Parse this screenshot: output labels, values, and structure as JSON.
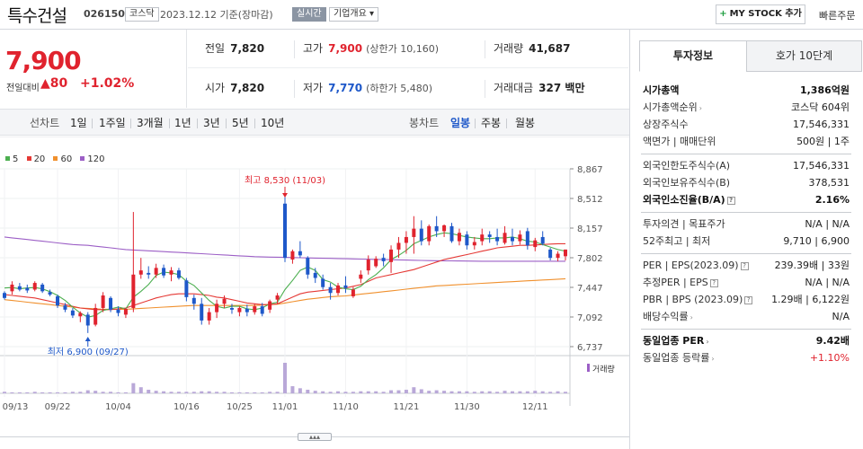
{
  "header": {
    "stock_name": "특수건설",
    "stock_code": "026150",
    "market": "코스닥",
    "date_text": "2023.12.12 기준(장마감)",
    "realtime": "실시간",
    "company_info": "기업개요 ▾",
    "mystock_label": "MY STOCK 추가",
    "mystock_plus": "+",
    "quick_order": "빠른주문"
  },
  "price": {
    "current": "7,900",
    "diff_label": "전일대비",
    "diff_value": "▲80",
    "diff_pct": "+1.02%"
  },
  "summary": {
    "prev_label": "전일",
    "prev_value": "7,820",
    "high_label": "고가",
    "high_value": "7,900",
    "high_sub": "(상한가 10,160)",
    "volume_label": "거래량",
    "volume_value": "41,687",
    "open_label": "시가",
    "open_value": "7,820",
    "low_label": "저가",
    "low_value": "7,770",
    "low_sub": "(하한가 5,480)",
    "amount_label": "거래대금",
    "amount_value": "327 백만"
  },
  "toolbar": {
    "line_label": "선차트",
    "periods": [
      "1일",
      "1주일",
      "3개월",
      "1년",
      "3년",
      "5년",
      "10년"
    ],
    "candle_label": "봉차트",
    "candle_types": [
      "일봉",
      "주봉",
      "월봉"
    ],
    "active_candle": "일봉"
  },
  "legend": [
    {
      "name": "5",
      "color": "#4caf50"
    },
    {
      "name": "20",
      "color": "#e53935"
    },
    {
      "name": "60",
      "color": "#f0902d"
    },
    {
      "name": "120",
      "color": "#9c5fc6"
    }
  ],
  "chart_data": {
    "type": "candlestick",
    "y_ticks": [
      "8,867",
      "8,512",
      "8,157",
      "7,802",
      "7,447",
      "7,092",
      "6,737"
    ],
    "ylim": [
      6737,
      8867
    ],
    "x_labels": [
      "09/13",
      "09/22",
      "10/04",
      "10/16",
      "10/25",
      "11/01",
      "11/10",
      "11/21",
      "11/30",
      "12/11"
    ],
    "max_annotation": "최고 8,530 (11/03)",
    "min_annotation": "최저 6,900 (09/27)",
    "volume_label": "거래량",
    "up_color": "#e0232e",
    "down_color": "#1e58c9",
    "candles": [
      {
        "o": 7380,
        "h": 7400,
        "l": 7300,
        "c": 7320
      },
      {
        "o": 7400,
        "h": 7520,
        "l": 7360,
        "c": 7480
      },
      {
        "o": 7460,
        "h": 7500,
        "l": 7400,
        "c": 7420
      },
      {
        "o": 7440,
        "h": 7480,
        "l": 7380,
        "c": 7410
      },
      {
        "o": 7420,
        "h": 7520,
        "l": 7400,
        "c": 7500
      },
      {
        "o": 7480,
        "h": 7500,
        "l": 7380,
        "c": 7400
      },
      {
        "o": 7390,
        "h": 7420,
        "l": 7340,
        "c": 7360
      },
      {
        "o": 7340,
        "h": 7360,
        "l": 7200,
        "c": 7230
      },
      {
        "o": 7230,
        "h": 7260,
        "l": 7150,
        "c": 7180
      },
      {
        "o": 7170,
        "h": 7200,
        "l": 7080,
        "c": 7110
      },
      {
        "o": 7100,
        "h": 7160,
        "l": 7030,
        "c": 7140
      },
      {
        "o": 7120,
        "h": 7150,
        "l": 6900,
        "c": 6990
      },
      {
        "o": 7000,
        "h": 7250,
        "l": 6980,
        "c": 7200
      },
      {
        "o": 7200,
        "h": 7390,
        "l": 7150,
        "c": 7350
      },
      {
        "o": 7320,
        "h": 7340,
        "l": 7150,
        "c": 7180
      },
      {
        "o": 7180,
        "h": 7220,
        "l": 7100,
        "c": 7140
      },
      {
        "o": 7120,
        "h": 7200,
        "l": 7080,
        "c": 7190
      },
      {
        "o": 7200,
        "h": 8350,
        "l": 7150,
        "c": 7600
      },
      {
        "o": 7600,
        "h": 7800,
        "l": 7550,
        "c": 7650
      },
      {
        "o": 7620,
        "h": 7700,
        "l": 7550,
        "c": 7600
      },
      {
        "o": 7600,
        "h": 7730,
        "l": 7560,
        "c": 7680
      },
      {
        "o": 7680,
        "h": 7720,
        "l": 7560,
        "c": 7590
      },
      {
        "o": 7600,
        "h": 7690,
        "l": 7520,
        "c": 7650
      },
      {
        "o": 7650,
        "h": 7680,
        "l": 7540,
        "c": 7560
      },
      {
        "o": 7530,
        "h": 7560,
        "l": 7280,
        "c": 7330
      },
      {
        "o": 7320,
        "h": 7360,
        "l": 7180,
        "c": 7250
      },
      {
        "o": 7250,
        "h": 7320,
        "l": 7000,
        "c": 7050
      },
      {
        "o": 7050,
        "h": 7200,
        "l": 7000,
        "c": 7150
      },
      {
        "o": 7150,
        "h": 7300,
        "l": 7080,
        "c": 7250
      },
      {
        "o": 7250,
        "h": 7350,
        "l": 7200,
        "c": 7310
      },
      {
        "o": 7200,
        "h": 7250,
        "l": 7130,
        "c": 7180
      },
      {
        "o": 7150,
        "h": 7220,
        "l": 7100,
        "c": 7200
      },
      {
        "o": 7190,
        "h": 7240,
        "l": 7100,
        "c": 7150
      },
      {
        "o": 7150,
        "h": 7250,
        "l": 7120,
        "c": 7220
      },
      {
        "o": 7220,
        "h": 7260,
        "l": 7100,
        "c": 7130
      },
      {
        "o": 7180,
        "h": 7300,
        "l": 7140,
        "c": 7280
      },
      {
        "o": 7300,
        "h": 7380,
        "l": 7250,
        "c": 7350
      },
      {
        "o": 8450,
        "h": 8530,
        "l": 7750,
        "c": 7800
      },
      {
        "o": 7780,
        "h": 7900,
        "l": 7730,
        "c": 7880
      },
      {
        "o": 7880,
        "h": 8000,
        "l": 7800,
        "c": 7830
      },
      {
        "o": 7800,
        "h": 7820,
        "l": 7550,
        "c": 7600
      },
      {
        "o": 7620,
        "h": 7680,
        "l": 7500,
        "c": 7560
      },
      {
        "o": 7550,
        "h": 7600,
        "l": 7420,
        "c": 7450
      },
      {
        "o": 7450,
        "h": 7500,
        "l": 7300,
        "c": 7380
      },
      {
        "o": 7380,
        "h": 7500,
        "l": 7350,
        "c": 7470
      },
      {
        "o": 7470,
        "h": 7580,
        "l": 7380,
        "c": 7440
      },
      {
        "o": 7340,
        "h": 7450,
        "l": 7320,
        "c": 7420
      },
      {
        "o": 7550,
        "h": 7650,
        "l": 7500,
        "c": 7600
      },
      {
        "o": 7650,
        "h": 7830,
        "l": 7600,
        "c": 7780
      },
      {
        "o": 7700,
        "h": 7820,
        "l": 7680,
        "c": 7790
      },
      {
        "o": 7800,
        "h": 7850,
        "l": 7700,
        "c": 7760
      },
      {
        "o": 7750,
        "h": 7950,
        "l": 7620,
        "c": 7900
      },
      {
        "o": 7900,
        "h": 8050,
        "l": 7800,
        "c": 7980
      },
      {
        "o": 7980,
        "h": 8120,
        "l": 7850,
        "c": 8050
      },
      {
        "o": 8050,
        "h": 8300,
        "l": 7850,
        "c": 8150
      },
      {
        "o": 8150,
        "h": 8250,
        "l": 7950,
        "c": 8000
      },
      {
        "o": 8000,
        "h": 8200,
        "l": 7950,
        "c": 8180
      },
      {
        "o": 8180,
        "h": 8300,
        "l": 8050,
        "c": 8120
      },
      {
        "o": 8120,
        "h": 8200,
        "l": 8050,
        "c": 8190
      },
      {
        "o": 8180,
        "h": 8220,
        "l": 7980,
        "c": 8000
      },
      {
        "o": 8000,
        "h": 8150,
        "l": 7950,
        "c": 8100
      },
      {
        "o": 8080,
        "h": 8120,
        "l": 7900,
        "c": 7950
      },
      {
        "o": 7950,
        "h": 8050,
        "l": 7900,
        "c": 7990
      },
      {
        "o": 8000,
        "h": 8150,
        "l": 7950,
        "c": 8080
      },
      {
        "o": 8080,
        "h": 8120,
        "l": 7980,
        "c": 8050
      },
      {
        "o": 8050,
        "h": 8150,
        "l": 7950,
        "c": 8000
      },
      {
        "o": 7980,
        "h": 8180,
        "l": 7960,
        "c": 8100
      },
      {
        "o": 8050,
        "h": 8150,
        "l": 7950,
        "c": 8000
      },
      {
        "o": 8000,
        "h": 8130,
        "l": 7960,
        "c": 8080
      },
      {
        "o": 8120,
        "h": 8160,
        "l": 7900,
        "c": 7950
      },
      {
        "o": 7930,
        "h": 8040,
        "l": 7880,
        "c": 8010
      },
      {
        "o": 8050,
        "h": 8120,
        "l": 7950,
        "c": 7970
      },
      {
        "o": 7900,
        "h": 7920,
        "l": 7770,
        "c": 7800
      },
      {
        "o": 7800,
        "h": 7880,
        "l": 7760,
        "c": 7850
      },
      {
        "o": 7820,
        "h": 7900,
        "l": 7770,
        "c": 7900
      }
    ],
    "ma5": [
      7440,
      7445,
      7430,
      7440,
      7445,
      7430,
      7395,
      7350,
      7290,
      7210,
      7140,
      7090,
      7110,
      7170,
      7190,
      7210,
      7190,
      7330,
      7400,
      7480,
      7590,
      7630,
      7620,
      7600,
      7520,
      7470,
      7380,
      7290,
      7220,
      7200,
      7220,
      7220,
      7190,
      7180,
      7200,
      7250,
      7270,
      7420,
      7530,
      7650,
      7690,
      7650,
      7540,
      7510,
      7450,
      7430,
      7420,
      7460,
      7540,
      7600,
      7680,
      7780,
      7830,
      7890,
      7970,
      8010,
      8050,
      8080,
      8100,
      8090,
      8070,
      8050,
      8040,
      8030,
      8030,
      8040,
      8040,
      8050,
      8030,
      8000,
      7990,
      7960,
      7930,
      7900,
      7880
    ],
    "ma20": [
      7360,
      7350,
      7340,
      7330,
      7320,
      7300,
      7280,
      7260,
      7240,
      7220,
      7200,
      7190,
      7180,
      7180,
      7180,
      7190,
      7200,
      7230,
      7260,
      7290,
      7320,
      7340,
      7360,
      7370,
      7370,
      7370,
      7360,
      7350,
      7330,
      7320,
      7300,
      7280,
      7260,
      7250,
      7240,
      7240,
      7250,
      7290,
      7330,
      7370,
      7390,
      7400,
      7410,
      7420,
      7430,
      7440,
      7460,
      7480,
      7520,
      7560,
      7580,
      7600,
      7620,
      7640,
      7660,
      7690,
      7720,
      7750,
      7780,
      7800,
      7820,
      7840,
      7860,
      7880,
      7900,
      7920,
      7930,
      7940,
      7950,
      7950,
      7955,
      7960,
      7965,
      7970,
      7970
    ],
    "ma60": [
      7300,
      7290,
      7280,
      7270,
      7260,
      7250,
      7240,
      7230,
      7220,
      7210,
      7200,
      7195,
      7190,
      7185,
      7185,
      7185,
      7185,
      7190,
      7195,
      7200,
      7205,
      7210,
      7215,
      7220,
      7225,
      7230,
      7230,
      7230,
      7230,
      7230,
      7230,
      7230,
      7230,
      7230,
      7235,
      7240,
      7245,
      7260,
      7275,
      7290,
      7305,
      7315,
      7325,
      7335,
      7340,
      7345,
      7355,
      7365,
      7375,
      7385,
      7395,
      7405,
      7415,
      7425,
      7435,
      7445,
      7455,
      7465,
      7470,
      7475,
      7480,
      7485,
      7490,
      7495,
      7500,
      7505,
      7510,
      7515,
      7520,
      7525,
      7530,
      7535,
      7540,
      7545,
      7550
    ],
    "ma120": [
      8050,
      8040,
      8030,
      8020,
      8010,
      8000,
      7990,
      7980,
      7970,
      7960,
      7955,
      7950,
      7940,
      7930,
      7920,
      7910,
      7900,
      7895,
      7890,
      7885,
      7880,
      7875,
      7870,
      7865,
      7860,
      7855,
      7850,
      7845,
      7840,
      7835,
      7830,
      7825,
      7820,
      7815,
      7812,
      7810,
      7808,
      7806,
      7804,
      7802,
      7800,
      7798,
      7796,
      7794,
      7792,
      7790,
      7788,
      7786,
      7784,
      7782,
      7780,
      7778,
      7776,
      7774,
      7772,
      7770,
      7768,
      7766,
      7765,
      7764,
      7763,
      7762,
      7761,
      7760,
      7760,
      7760,
      7760,
      7760,
      7760,
      7760,
      7760,
      7760,
      7760,
      7760,
      7760
    ],
    "volume": [
      3,
      2,
      2,
      2,
      3,
      2,
      2,
      2,
      2,
      3,
      3,
      6,
      5,
      3,
      3,
      2,
      2,
      20,
      12,
      7,
      5,
      4,
      3,
      3,
      3,
      3,
      4,
      4,
      3,
      3,
      2,
      2,
      2,
      2,
      2,
      3,
      3,
      60,
      14,
      10,
      7,
      5,
      4,
      3,
      4,
      3,
      3,
      4,
      4,
      4,
      3,
      6,
      6,
      7,
      12,
      8,
      5,
      6,
      5,
      4,
      4,
      4,
      3,
      4,
      4,
      3,
      5,
      4,
      4,
      4,
      5,
      4,
      3,
      4,
      3
    ]
  },
  "right_panel": {
    "tab_invest": "투자정보",
    "tab_hoga": "호가 10단계",
    "groups": [
      [
        {
          "k": "시가총액",
          "v": "1,386억원",
          "bold": true
        },
        {
          "k": "시가총액순위",
          "v": "코스닥 604위",
          "arrow": true
        },
        {
          "k": "상장주식수",
          "v": "17,546,331"
        },
        {
          "k": "액면가 | 매매단위",
          "v": "500원 | 1주"
        }
      ],
      [
        {
          "k": "외국인한도주식수(A)",
          "v": "17,546,331"
        },
        {
          "k": "외국인보유주식수(B)",
          "v": "378,531"
        },
        {
          "k": "외국인소진율(B/A)",
          "v": "2.16%",
          "bold": true,
          "q": true
        }
      ],
      [
        {
          "k": "투자의견 | 목표주가",
          "v": "N/A | N/A"
        },
        {
          "k": "52주최고 | 최저",
          "v": "9,710 | 6,900"
        }
      ],
      [
        {
          "k": "PER | EPS(2023.09)",
          "v": "239.39배 | 33원",
          "q": true
        },
        {
          "k": "추정PER | EPS",
          "v": "N/A | N/A",
          "q": true
        },
        {
          "k": "PBR | BPS (2023.09)",
          "v": "1.29배 | 6,122원",
          "q": true
        },
        {
          "k": "배당수익률",
          "v": "N/A",
          "arrow": true
        }
      ],
      [
        {
          "k": "동일업종 PER",
          "v": "9.42배",
          "bold": true,
          "arrow": true
        },
        {
          "k": "동일업종 등락률",
          "v": "+1.10%",
          "red": true,
          "arrow": true
        }
      ]
    ]
  }
}
